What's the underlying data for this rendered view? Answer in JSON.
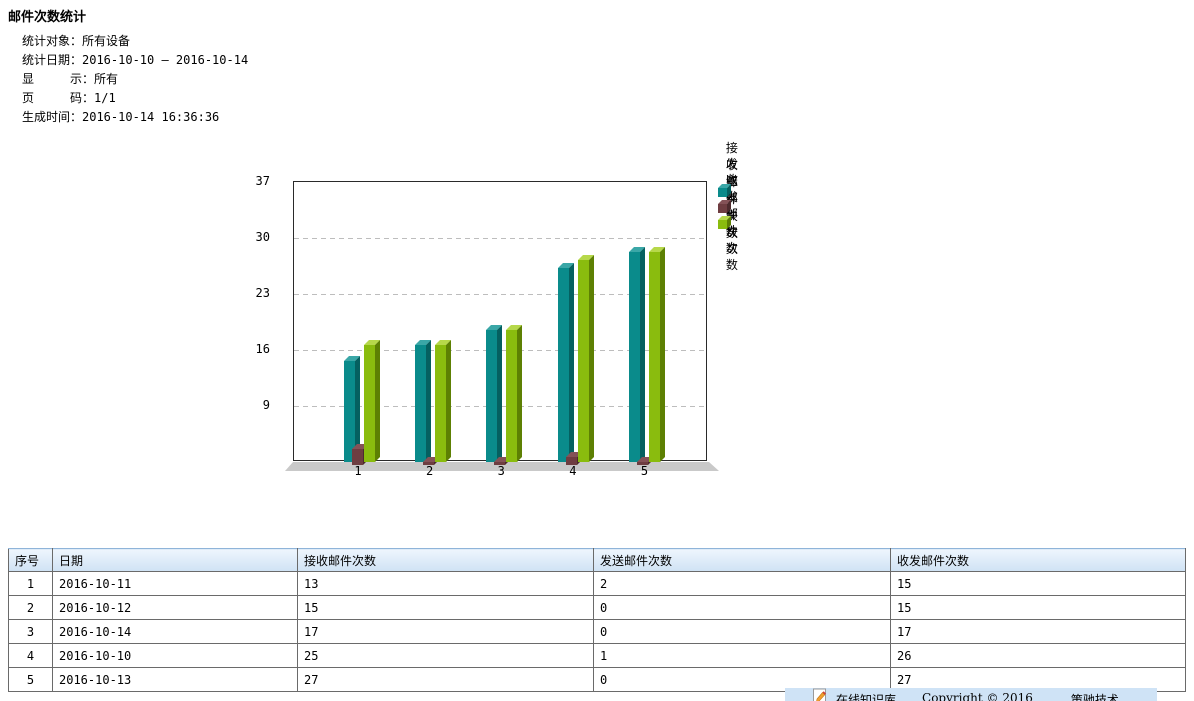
{
  "page": {
    "title": "邮件次数统计"
  },
  "report_meta": {
    "lines": [
      "统计对象：所有设备",
      "统计日期：2016-10-10 — 2016-10-14",
      "显　　　示：所有",
      "页　　　码：1/1",
      "生成时间：2016-10-14 16:36:36"
    ]
  },
  "chart_data": {
    "type": "bar",
    "style": "3d-grouped-bars",
    "title": "",
    "categories": [
      "1",
      "2",
      "3",
      "4",
      "5"
    ],
    "series": [
      {
        "name": "接收邮件次数",
        "values": [
          13,
          15,
          17,
          25,
          27
        ],
        "color": "#0a8b8b",
        "color_side": "#056060",
        "color_top": "#3aa7a7"
      },
      {
        "name": "发送邮件次数",
        "values": [
          2,
          0,
          0,
          1,
          0
        ],
        "color": "#6e3d41",
        "color_side": "#4d2a2d",
        "color_top": "#845257"
      },
      {
        "name": "收发邮件次数",
        "values": [
          15,
          15,
          17,
          26,
          27
        ],
        "color": "#8abc0e",
        "color_side": "#5d8003",
        "color_top": "#b6d84a"
      }
    ],
    "yticks": [
      9,
      16,
      23,
      30,
      37
    ],
    "ylim": [
      2,
      37
    ],
    "xlabel": "",
    "ylabel": "",
    "grid": "horizontal-dashed",
    "legend_position": "outside-top-right",
    "floor_color": "#c9c9c9"
  },
  "table": {
    "columns": [
      "序号",
      "日期",
      "接收邮件次数",
      "发送邮件次数",
      "收发邮件次数"
    ],
    "rows": [
      [
        "1",
        "2016-10-11",
        "13",
        "2",
        "15"
      ],
      [
        "2",
        "2016-10-12",
        "15",
        "0",
        "15"
      ],
      [
        "3",
        "2016-10-14",
        "17",
        "0",
        "17"
      ],
      [
        "4",
        "2016-10-10",
        "25",
        "1",
        "26"
      ],
      [
        "5",
        "2016-10-13",
        "27",
        "0",
        "27"
      ]
    ]
  },
  "footer": {
    "kb_label": "在线知识库",
    "copyright": "Copyright © 2016",
    "company": "策驰技术"
  }
}
